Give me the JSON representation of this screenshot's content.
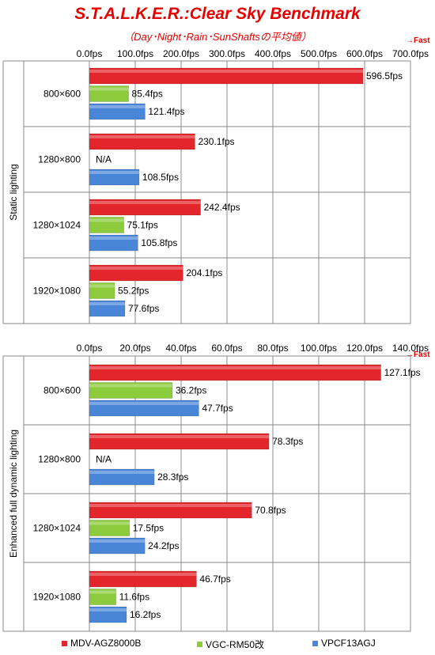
{
  "title": "S.T.A.L.K.E.R.:Clear Sky Benchmark",
  "subtitle": "（Day･Night･Rain･SunShaftsの平均値）",
  "fast_label": "→Fast",
  "colors": {
    "MDV-AGZ8000B": "#e3262c",
    "VGC-RM50改": "#8ccc3c",
    "VPCF13AGJ": "#4a86d8"
  },
  "chart_data": [
    {
      "type": "bar",
      "orientation": "horizontal",
      "group_label": "Static lighting",
      "xlim": [
        0,
        700
      ],
      "ticks": [
        "0.0fps",
        "100.0fps",
        "200.0fps",
        "300.0fps",
        "400.0fps",
        "500.0fps",
        "600.0fps",
        "700.0fps"
      ],
      "tick_values": [
        0,
        100,
        200,
        300,
        400,
        500,
        600,
        700
      ],
      "categories": [
        "800×600",
        "1280×800",
        "1280×1024",
        "1920×1080"
      ],
      "series": [
        {
          "name": "MDV-AGZ8000B",
          "values": [
            596.5,
            230.1,
            242.4,
            204.1
          ],
          "labels": [
            "596.5fps",
            "230.1fps",
            "242.4fps",
            "204.1fps"
          ]
        },
        {
          "name": "VGC-RM50改",
          "values": [
            85.4,
            null,
            75.1,
            55.2
          ],
          "labels": [
            "85.4fps",
            "N/A",
            "75.1fps",
            "55.2fps"
          ]
        },
        {
          "name": "VPCF13AGJ",
          "values": [
            121.4,
            108.5,
            105.8,
            77.6
          ],
          "labels": [
            "121.4fps",
            "108.5fps",
            "105.8fps",
            "77.6fps"
          ]
        }
      ]
    },
    {
      "type": "bar",
      "orientation": "horizontal",
      "group_label": "Enhanced full dynamic lighting",
      "xlim": [
        0,
        140
      ],
      "ticks": [
        "0.0fps",
        "20.0fps",
        "40.0fps",
        "60.0fps",
        "80.0fps",
        "100.0fps",
        "120.0fps",
        "140.0fps"
      ],
      "tick_values": [
        0,
        20,
        40,
        60,
        80,
        100,
        120,
        140
      ],
      "categories": [
        "800×600",
        "1280×800",
        "1280×1024",
        "1920×1080"
      ],
      "series": [
        {
          "name": "MDV-AGZ8000B",
          "values": [
            127.1,
            78.3,
            70.8,
            46.7
          ],
          "labels": [
            "127.1fps",
            "78.3fps",
            "70.8fps",
            "46.7fps"
          ]
        },
        {
          "name": "VGC-RM50改",
          "values": [
            36.2,
            null,
            17.5,
            11.6
          ],
          "labels": [
            "36.2fps",
            "N/A",
            "17.5fps",
            "11.6fps"
          ]
        },
        {
          "name": "VPCF13AGJ",
          "values": [
            47.7,
            28.3,
            24.2,
            16.2
          ],
          "labels": [
            "47.7fps",
            "28.3fps",
            "24.2fps",
            "16.2fps"
          ]
        }
      ]
    }
  ],
  "legend": [
    {
      "name": "MDV-AGZ8000B",
      "color": "#e3262c"
    },
    {
      "name": "VGC-RM50改",
      "color": "#8ccc3c"
    },
    {
      "name": "VPCF13AGJ",
      "color": "#4a86d8"
    }
  ]
}
